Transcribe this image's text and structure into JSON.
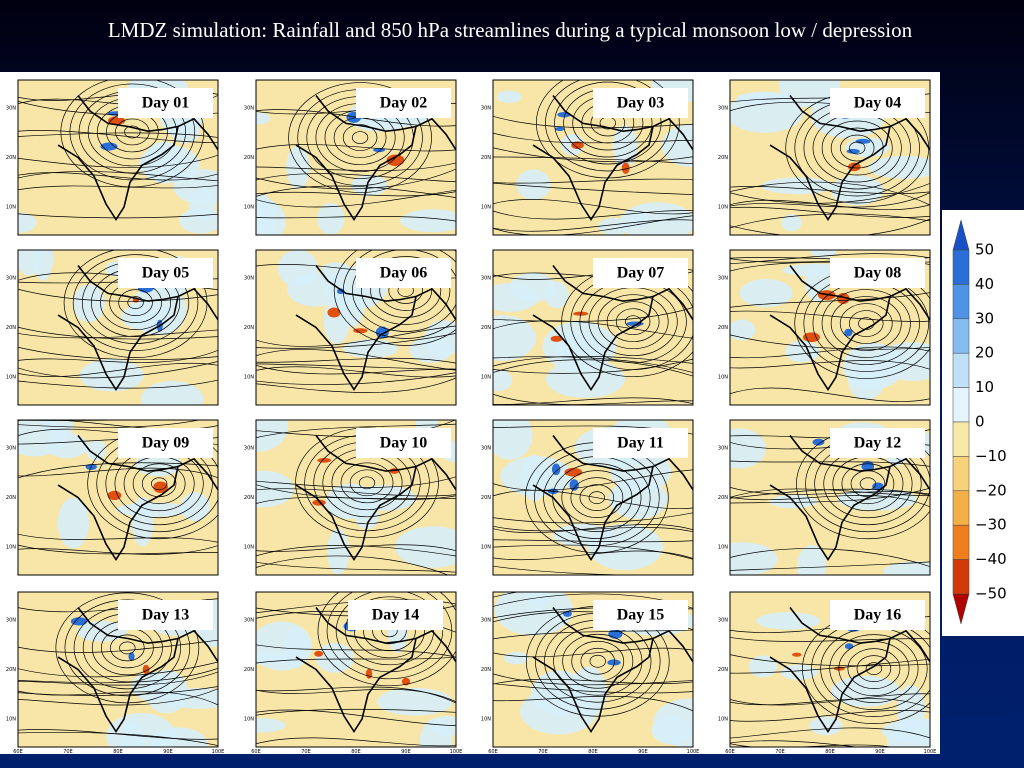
{
  "header": {
    "title": "LMDZ simulation: Rainfall and 850 hPa streamlines during a typical monsoon low / depression"
  },
  "panels": [
    {
      "label": "Day 01"
    },
    {
      "label": "Day 02"
    },
    {
      "label": "Day 03"
    },
    {
      "label": "Day 04"
    },
    {
      "label": "Day 05"
    },
    {
      "label": "Day 06"
    },
    {
      "label": "Day 07"
    },
    {
      "label": "Day 08"
    },
    {
      "label": "Day 09"
    },
    {
      "label": "Day 10"
    },
    {
      "label": "Day 11"
    },
    {
      "label": "Day 12"
    },
    {
      "label": "Day 13"
    },
    {
      "label": "Day 14"
    },
    {
      "label": "Day 15"
    },
    {
      "label": "Day 16"
    }
  ],
  "map_axes": {
    "lat_labels": [
      "30N",
      "20N",
      "10N"
    ],
    "lon_labels": [
      "60E",
      "70E",
      "80E",
      "90E",
      "100E"
    ]
  },
  "colorbar": {
    "labels": [
      "50",
      "40",
      "30",
      "20",
      "10",
      "0",
      "−10",
      "−20",
      "−30",
      "−40",
      "−50"
    ],
    "colors": [
      "#1850c8",
      "#2a6fd8",
      "#4f93e6",
      "#86bdf0",
      "#bfe0f7",
      "#e4f4fc",
      "#f8e9a8",
      "#f6d27a",
      "#f4b048",
      "#ee7e1e",
      "#d23a0c",
      "#b00000"
    ]
  }
}
